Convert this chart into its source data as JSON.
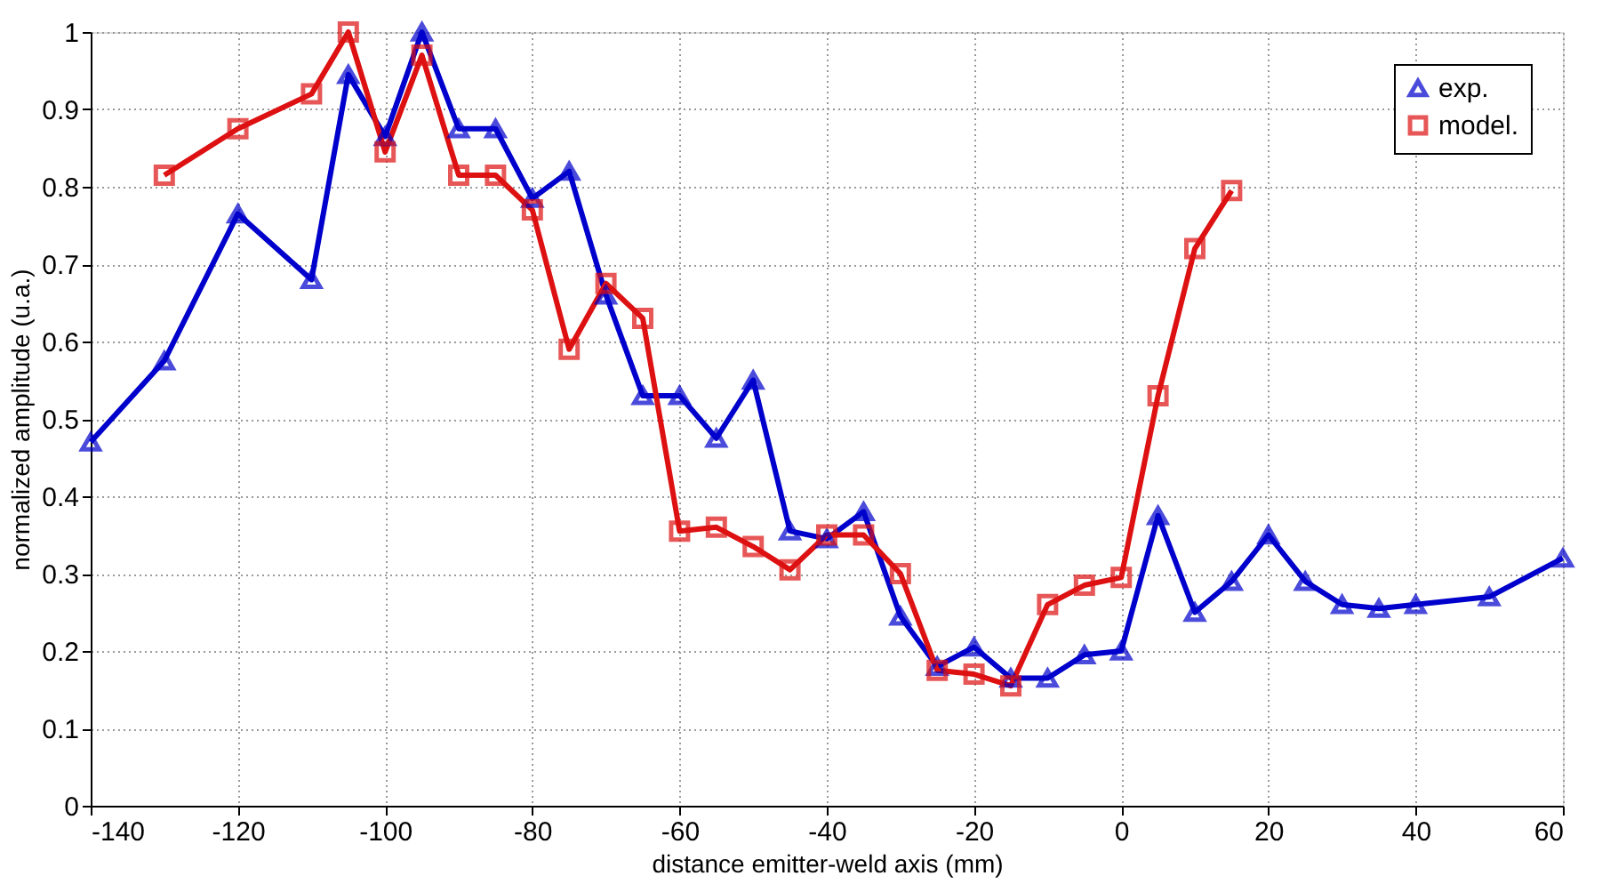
{
  "chart_data": {
    "type": "line",
    "xlabel": "distance emitter-weld axis (mm)",
    "ylabel": "normalized amplitude (u.a.)",
    "xlim": [
      -140,
      60
    ],
    "xticks": [
      -140,
      -120,
      -100,
      -80,
      -60,
      -40,
      -20,
      0,
      20,
      40,
      60
    ],
    "ylim": [
      0,
      1
    ],
    "yticks": [
      0,
      0.1,
      0.2,
      0.3,
      0.4,
      0.5,
      0.6,
      0.7,
      0.8,
      0.9,
      1
    ],
    "grid": true,
    "legend": "top right",
    "line_style": "solid",
    "series": [
      {
        "name": "exp.",
        "color": "#0000cc",
        "marker": "triangle",
        "x": [
          -140,
          -130,
          -120,
          -110,
          -105,
          -100,
          -95,
          -90,
          -85,
          -80,
          -75,
          -70,
          -65,
          -60,
          -55,
          -50,
          -45,
          -40,
          -35,
          -30,
          -25,
          -20,
          -15,
          -10,
          -5,
          0,
          5,
          10,
          15,
          20,
          25,
          30,
          35,
          40,
          50,
          60
        ],
        "values": [
          0.47,
          0.575,
          0.765,
          0.68,
          0.945,
          0.865,
          1.0,
          0.875,
          0.875,
          0.785,
          0.82,
          0.66,
          0.53,
          0.53,
          0.475,
          0.55,
          0.355,
          0.345,
          0.38,
          0.245,
          0.18,
          0.205,
          0.165,
          0.165,
          0.195,
          0.2,
          0.375,
          0.25,
          0.29,
          0.35,
          0.29,
          0.26,
          0.255,
          0.26,
          0.27,
          0.32
        ]
      },
      {
        "name": "model.",
        "color": "#dd1111",
        "marker": "square",
        "x": [
          -130,
          -120,
          -110,
          -105,
          -100,
          -95,
          -90,
          -85,
          -80,
          -75,
          -70,
          -65,
          -60,
          -55,
          -50,
          -45,
          -40,
          -35,
          -30,
          -25,
          -20,
          -15,
          -10,
          -5,
          0,
          5,
          10,
          15
        ],
        "values": [
          0.815,
          0.875,
          0.92,
          1.0,
          0.845,
          0.97,
          0.815,
          0.815,
          0.77,
          0.59,
          0.675,
          0.63,
          0.355,
          0.36,
          0.335,
          0.305,
          0.35,
          0.35,
          0.3,
          0.175,
          0.17,
          0.155,
          0.26,
          0.285,
          0.295,
          0.53,
          0.72,
          0.795
        ]
      }
    ]
  }
}
